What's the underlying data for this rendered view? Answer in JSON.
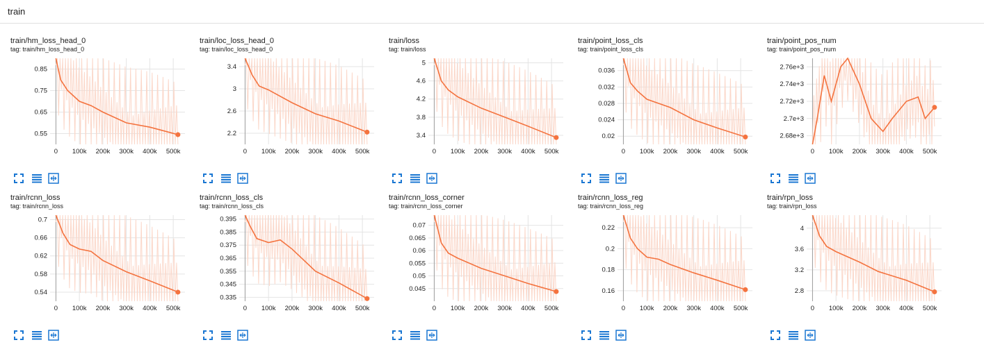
{
  "section": {
    "title": "train"
  },
  "colors": {
    "accent": "#f4733f",
    "raw": "#fbd7c9",
    "toolbar": "#1976d2"
  },
  "icons": {
    "expand": "fullscreen-icon",
    "data": "list-icon",
    "fit": "fit-domain-icon"
  },
  "cards": [
    {
      "title": "train/hm_loss_head_0",
      "tag": "tag: train/hm_loss_head_0"
    },
    {
      "title": "train/loc_loss_head_0",
      "tag": "tag: train/loc_loss_head_0"
    },
    {
      "title": "train/loss",
      "tag": "tag: train/loss"
    },
    {
      "title": "train/point_loss_cls",
      "tag": "tag: train/point_loss_cls"
    },
    {
      "title": "train/point_pos_num",
      "tag": "tag: train/point_pos_num"
    },
    {
      "title": "train/rcnn_loss",
      "tag": "tag: train/rcnn_loss"
    },
    {
      "title": "train/rcnn_loss_cls",
      "tag": "tag: train/rcnn_loss_cls"
    },
    {
      "title": "train/rcnn_loss_corner",
      "tag": "tag: train/rcnn_loss_corner"
    },
    {
      "title": "train/rcnn_loss_reg",
      "tag": "tag: train/rcnn_loss_reg"
    },
    {
      "title": "train/rpn_loss",
      "tag": "tag: train/rpn_loss"
    }
  ],
  "chart_data": [
    {
      "type": "line",
      "title": "train/hm_loss_head_0",
      "xticks": [
        "0",
        "100k",
        "200k",
        "300k",
        "400k",
        "500k"
      ],
      "xtick_values": [
        0,
        100000,
        200000,
        300000,
        400000,
        500000
      ],
      "yticks": [
        "0.55",
        "0.65",
        "0.75",
        "0.85"
      ],
      "ytick_values": [
        0.55,
        0.65,
        0.75,
        0.85
      ],
      "xlim": [
        -25000,
        550000
      ],
      "ylim": [
        0.5,
        0.9
      ],
      "x": [
        0,
        20000,
        50000,
        100000,
        150000,
        200000,
        300000,
        400000,
        520000
      ],
      "y": [
        0.9,
        0.8,
        0.75,
        0.7,
        0.68,
        0.65,
        0.6,
        0.58,
        0.545
      ]
    },
    {
      "type": "line",
      "title": "train/loc_loss_head_0",
      "xticks": [
        "0",
        "100k",
        "200k",
        "300k",
        "400k",
        "500k"
      ],
      "xtick_values": [
        0,
        100000,
        200000,
        300000,
        400000,
        500000
      ],
      "yticks": [
        "2.2",
        "2.6",
        "3",
        "3.4"
      ],
      "ytick_values": [
        2.2,
        2.6,
        3,
        3.4
      ],
      "xlim": [
        -25000,
        550000
      ],
      "ylim": [
        2.0,
        3.55
      ],
      "x": [
        0,
        30000,
        60000,
        100000,
        200000,
        300000,
        400000,
        520000
      ],
      "y": [
        3.55,
        3.25,
        3.05,
        2.98,
        2.75,
        2.55,
        2.42,
        2.22
      ]
    },
    {
      "type": "line",
      "title": "train/loss",
      "xticks": [
        "0",
        "100k",
        "200k",
        "300k",
        "400k",
        "500k"
      ],
      "xtick_values": [
        0,
        100000,
        200000,
        300000,
        400000,
        500000
      ],
      "yticks": [
        "3.4",
        "3.8",
        "4.2",
        "4.6",
        "5"
      ],
      "ytick_values": [
        3.4,
        3.8,
        4.2,
        4.6,
        5
      ],
      "xlim": [
        -25000,
        550000
      ],
      "ylim": [
        3.2,
        5.1
      ],
      "x": [
        0,
        30000,
        60000,
        100000,
        200000,
        300000,
        400000,
        520000
      ],
      "y": [
        5.1,
        4.6,
        4.4,
        4.25,
        4.0,
        3.8,
        3.6,
        3.35
      ]
    },
    {
      "type": "line",
      "title": "train/point_loss_cls",
      "xticks": [
        "0",
        "100k",
        "200k",
        "300k",
        "400k",
        "500k"
      ],
      "xtick_values": [
        0,
        100000,
        200000,
        300000,
        400000,
        500000
      ],
      "yticks": [
        "0.02",
        "0.024",
        "0.028",
        "0.032",
        "0.036"
      ],
      "ytick_values": [
        0.02,
        0.024,
        0.028,
        0.032,
        0.036
      ],
      "xlim": [
        -25000,
        550000
      ],
      "ylim": [
        0.018,
        0.039
      ],
      "x": [
        0,
        30000,
        60000,
        100000,
        200000,
        300000,
        400000,
        520000
      ],
      "y": [
        0.039,
        0.033,
        0.031,
        0.029,
        0.027,
        0.024,
        0.022,
        0.0198
      ]
    },
    {
      "type": "line",
      "title": "train/point_pos_num",
      "xticks": [
        "0",
        "100k",
        "200k",
        "300k",
        "400k",
        "500k"
      ],
      "xtick_values": [
        0,
        100000,
        200000,
        300000,
        400000,
        500000
      ],
      "yticks": [
        "2.68e+3",
        "2.7e+3",
        "2.72e+3",
        "2.74e+3",
        "2.76e+3"
      ],
      "ytick_values": [
        2680,
        2700,
        2720,
        2740,
        2760
      ],
      "xlim": [
        -25000,
        550000
      ],
      "ylim": [
        2670,
        2770
      ],
      "x": [
        0,
        20000,
        50000,
        80000,
        120000,
        150000,
        200000,
        250000,
        300000,
        340000,
        400000,
        450000,
        480000,
        520000
      ],
      "y": [
        2670,
        2700,
        2750,
        2720,
        2760,
        2770,
        2740,
        2700,
        2685,
        2700,
        2720,
        2725,
        2700,
        2713
      ]
    },
    {
      "type": "line",
      "title": "train/rcnn_loss",
      "xticks": [
        "0",
        "100k",
        "200k",
        "300k",
        "400k",
        "500k"
      ],
      "xtick_values": [
        0,
        100000,
        200000,
        300000,
        400000,
        500000
      ],
      "yticks": [
        "0.54",
        "0.58",
        "0.62",
        "0.66",
        "0.7"
      ],
      "ytick_values": [
        0.54,
        0.58,
        0.62,
        0.66,
        0.7
      ],
      "xlim": [
        -25000,
        550000
      ],
      "ylim": [
        0.52,
        0.71
      ],
      "x": [
        0,
        30000,
        60000,
        100000,
        150000,
        200000,
        300000,
        400000,
        520000
      ],
      "y": [
        0.71,
        0.67,
        0.645,
        0.635,
        0.63,
        0.61,
        0.585,
        0.565,
        0.54
      ]
    },
    {
      "type": "line",
      "title": "train/rcnn_loss_cls",
      "xticks": [
        "0",
        "100k",
        "200k",
        "300k",
        "400k",
        "500k"
      ],
      "xtick_values": [
        0,
        100000,
        200000,
        300000,
        400000,
        500000
      ],
      "yticks": [
        "0.335",
        "0.345",
        "0.355",
        "0.365",
        "0.375",
        "0.385",
        "0.395"
      ],
      "ytick_values": [
        0.335,
        0.345,
        0.355,
        0.365,
        0.375,
        0.385,
        0.395
      ],
      "xlim": [
        -25000,
        550000
      ],
      "ylim": [
        0.332,
        0.398
      ],
      "x": [
        0,
        20000,
        50000,
        100000,
        150000,
        200000,
        300000,
        400000,
        520000
      ],
      "y": [
        0.398,
        0.39,
        0.38,
        0.377,
        0.379,
        0.372,
        0.355,
        0.346,
        0.334
      ]
    },
    {
      "type": "line",
      "title": "train/rcnn_loss_corner",
      "xticks": [
        "0",
        "100k",
        "200k",
        "300k",
        "400k",
        "500k"
      ],
      "xtick_values": [
        0,
        100000,
        200000,
        300000,
        400000,
        500000
      ],
      "yticks": [
        "0.045",
        "0.05",
        "0.055",
        "0.06",
        "0.065",
        "0.07"
      ],
      "ytick_values": [
        0.045,
        0.05,
        0.055,
        0.06,
        0.065,
        0.07
      ],
      "xlim": [
        -25000,
        550000
      ],
      "ylim": [
        0.04,
        0.074
      ],
      "x": [
        0,
        30000,
        60000,
        100000,
        200000,
        300000,
        400000,
        520000
      ],
      "y": [
        0.074,
        0.063,
        0.059,
        0.057,
        0.053,
        0.05,
        0.047,
        0.0438
      ]
    },
    {
      "type": "line",
      "title": "train/rcnn_loss_reg",
      "xticks": [
        "0",
        "100k",
        "200k",
        "300k",
        "400k",
        "500k"
      ],
      "xtick_values": [
        0,
        100000,
        200000,
        300000,
        400000,
        500000
      ],
      "yticks": [
        "0.16",
        "0.18",
        "0.2",
        "0.22"
      ],
      "ytick_values": [
        0.16,
        0.18,
        0.2,
        0.22
      ],
      "xlim": [
        -25000,
        550000
      ],
      "ylim": [
        0.15,
        0.232
      ],
      "x": [
        0,
        30000,
        60000,
        100000,
        150000,
        200000,
        300000,
        400000,
        520000
      ],
      "y": [
        0.232,
        0.21,
        0.2,
        0.192,
        0.19,
        0.185,
        0.177,
        0.17,
        0.161
      ]
    },
    {
      "type": "line",
      "title": "train/rpn_loss",
      "xticks": [
        "0",
        "100k",
        "200k",
        "300k",
        "400k",
        "500k"
      ],
      "xtick_values": [
        0,
        100000,
        200000,
        300000,
        400000,
        500000
      ],
      "yticks": [
        "2.8",
        "3.2",
        "3.6",
        "4"
      ],
      "ytick_values": [
        2.8,
        3.2,
        3.6,
        4
      ],
      "xlim": [
        -25000,
        550000
      ],
      "ylim": [
        2.6,
        4.25
      ],
      "x": [
        0,
        30000,
        60000,
        100000,
        200000,
        280000,
        400000,
        520000
      ],
      "y": [
        4.25,
        3.85,
        3.65,
        3.55,
        3.35,
        3.17,
        3.0,
        2.78
      ]
    }
  ]
}
